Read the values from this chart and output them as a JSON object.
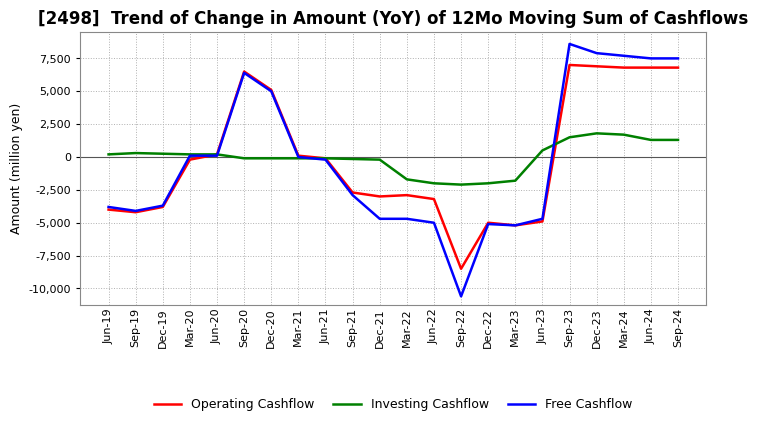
{
  "title": "[2498]  Trend of Change in Amount (YoY) of 12Mo Moving Sum of Cashflows",
  "ylabel": "Amount (million yen)",
  "x_labels": [
    "Jun-19",
    "Sep-19",
    "Dec-19",
    "Mar-20",
    "Jun-20",
    "Sep-20",
    "Dec-20",
    "Mar-21",
    "Jun-21",
    "Sep-21",
    "Dec-21",
    "Mar-22",
    "Jun-22",
    "Sep-22",
    "Dec-22",
    "Mar-23",
    "Jun-23",
    "Sep-23",
    "Dec-23",
    "Mar-24",
    "Jun-24",
    "Sep-24"
  ],
  "operating": [
    -4000,
    -4200,
    -3800,
    -200,
    200,
    6500,
    5100,
    100,
    -100,
    -2700,
    -3000,
    -2900,
    -3200,
    -8500,
    -5000,
    -5200,
    -4900,
    7000,
    6900,
    6800,
    6800,
    6800
  ],
  "investing": [
    200,
    300,
    250,
    200,
    200,
    -100,
    -100,
    -100,
    -100,
    -150,
    -200,
    -1700,
    -2000,
    -2100,
    -2000,
    -1800,
    500,
    1500,
    1800,
    1700,
    1300,
    1300
  ],
  "free": [
    -3800,
    -4100,
    -3700,
    100,
    100,
    6400,
    5000,
    0,
    -200,
    -2900,
    -4700,
    -4700,
    -5000,
    -10600,
    -5100,
    -5200,
    -4700,
    8600,
    7900,
    7700,
    7500,
    7500
  ],
  "ylim": [
    -11250,
    9500
  ],
  "yticks": [
    -10000,
    -7500,
    -5000,
    -2500,
    0,
    2500,
    5000,
    7500
  ],
  "operating_color": "#ff0000",
  "investing_color": "#008000",
  "free_color": "#0000ff",
  "background_color": "#ffffff",
  "grid_color": "#b0b0b0",
  "linewidth": 1.8,
  "title_fontsize": 12,
  "legend_fontsize": 9,
  "tick_fontsize": 8,
  "ylabel_fontsize": 9
}
